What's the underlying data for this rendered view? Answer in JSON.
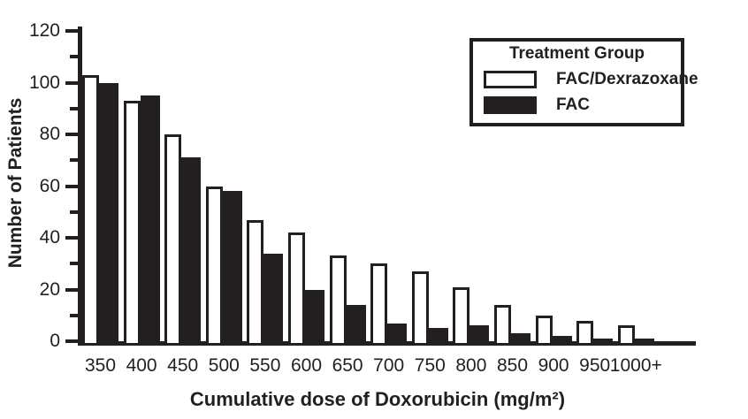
{
  "colors": {
    "ink": "#231f20",
    "background": "#ffffff",
    "series_open_fill": "#ffffff",
    "series_solid_fill": "#231f20"
  },
  "chart_data": {
    "type": "bar",
    "title": "",
    "xlabel": "Cumulative dose of Doxorubicin (mg/m²)",
    "ylabel": "Number of Patients",
    "categories": [
      "350",
      "400",
      "450",
      "500",
      "550",
      "600",
      "650",
      "700",
      "750",
      "800",
      "850",
      "900",
      "950",
      "1000+"
    ],
    "series": [
      {
        "name": "FAC/Dexrazoxane",
        "style": "open",
        "fill": "#ffffff",
        "outline": "#231f20",
        "values": [
          103,
          93,
          80,
          60,
          47,
          42,
          33,
          30,
          27,
          21,
          14,
          10,
          8,
          6
        ]
      },
      {
        "name": "FAC",
        "style": "solid",
        "fill": "#231f20",
        "outline": "#231f20",
        "values": [
          100,
          95,
          71,
          58,
          34,
          20,
          14,
          7,
          5,
          6,
          3,
          2,
          1,
          1
        ]
      }
    ],
    "ylim": [
      0,
      120
    ],
    "yticks": [
      0,
      20,
      40,
      60,
      80,
      100,
      120
    ],
    "minor_yticks": [
      10,
      30,
      50,
      70,
      90,
      110
    ],
    "grid": false,
    "legend_title": "Treatment Group",
    "legend_position": "top-right"
  },
  "legend": {
    "title": "Treatment Group",
    "items": [
      {
        "label": "FAC/Dexrazoxane",
        "swatch": "open",
        "swatch_color": "#ffffff"
      },
      {
        "label": "FAC",
        "swatch": "solid",
        "swatch_color": "#231f20"
      }
    ]
  }
}
